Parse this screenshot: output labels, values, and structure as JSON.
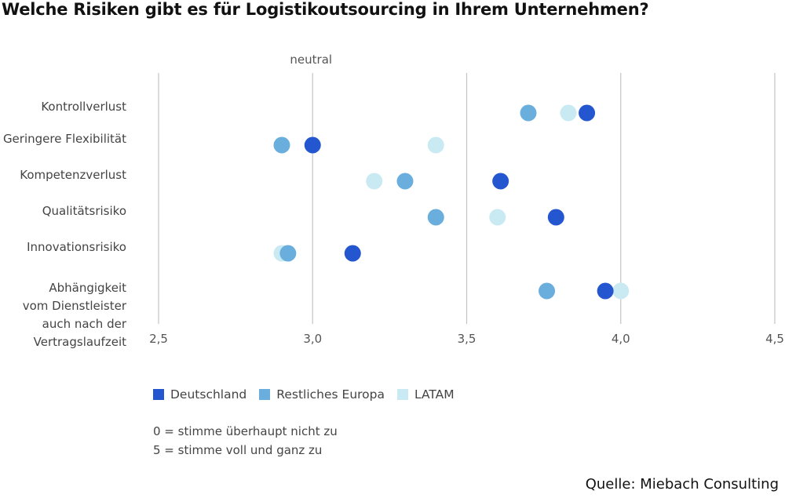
{
  "title": "Welche Risiken gibt es für Logistikoutsourcing in Ihrem Unternehmen?",
  "chart_data": {
    "type": "scatter",
    "title": "Welche Risiken gibt es für Logistikoutsourcing in Ihrem Unternehmen?",
    "categories": [
      [
        "Kontrollverlust"
      ],
      [
        "Geringere Flexibilität"
      ],
      [
        "Kompetenzverlust"
      ],
      [
        "Qualitätsrisiko"
      ],
      [
        "Innovationsrisiko"
      ],
      [
        "Abhängigkeit",
        "vom Dienstleister",
        "auch nach der",
        "Vertragslaufzeit"
      ]
    ],
    "xlim": [
      2.5,
      4.5
    ],
    "xticks": [
      2.5,
      3.0,
      3.5,
      4.0,
      4.5
    ],
    "xtick_labels": [
      "2,5",
      "3,0",
      "3,5",
      "4,0",
      "4,5"
    ],
    "reference_line": {
      "value": 3.0,
      "label": "neutral"
    },
    "grid": true,
    "legend_position": "bottom-left",
    "series": [
      {
        "name": "LATAM",
        "color": "#c9eaf2",
        "values": [
          3.83,
          3.4,
          3.2,
          3.6,
          2.9,
          4.0
        ]
      },
      {
        "name": "Restliches Europa",
        "color": "#6aaedd",
        "values": [
          3.7,
          2.9,
          3.3,
          3.4,
          2.92,
          3.76
        ]
      },
      {
        "name": "Deutschland",
        "color": "#2456cf",
        "values": [
          3.89,
          3.0,
          3.61,
          3.79,
          3.13,
          3.95
        ]
      }
    ],
    "legend_order": [
      "Deutschland",
      "Restliches Europa",
      "LATAM"
    ]
  },
  "legend": [
    {
      "name": "Deutschland",
      "color": "#2456cf"
    },
    {
      "name": "Restliches Europa",
      "color": "#6aaedd"
    },
    {
      "name": "LATAM",
      "color": "#c9eaf2"
    }
  ],
  "scale_notes": [
    "0 = stimme überhaupt nicht zu",
    "5 = stimme voll und ganz zu"
  ],
  "source": "Quelle: Miebach Consulting"
}
